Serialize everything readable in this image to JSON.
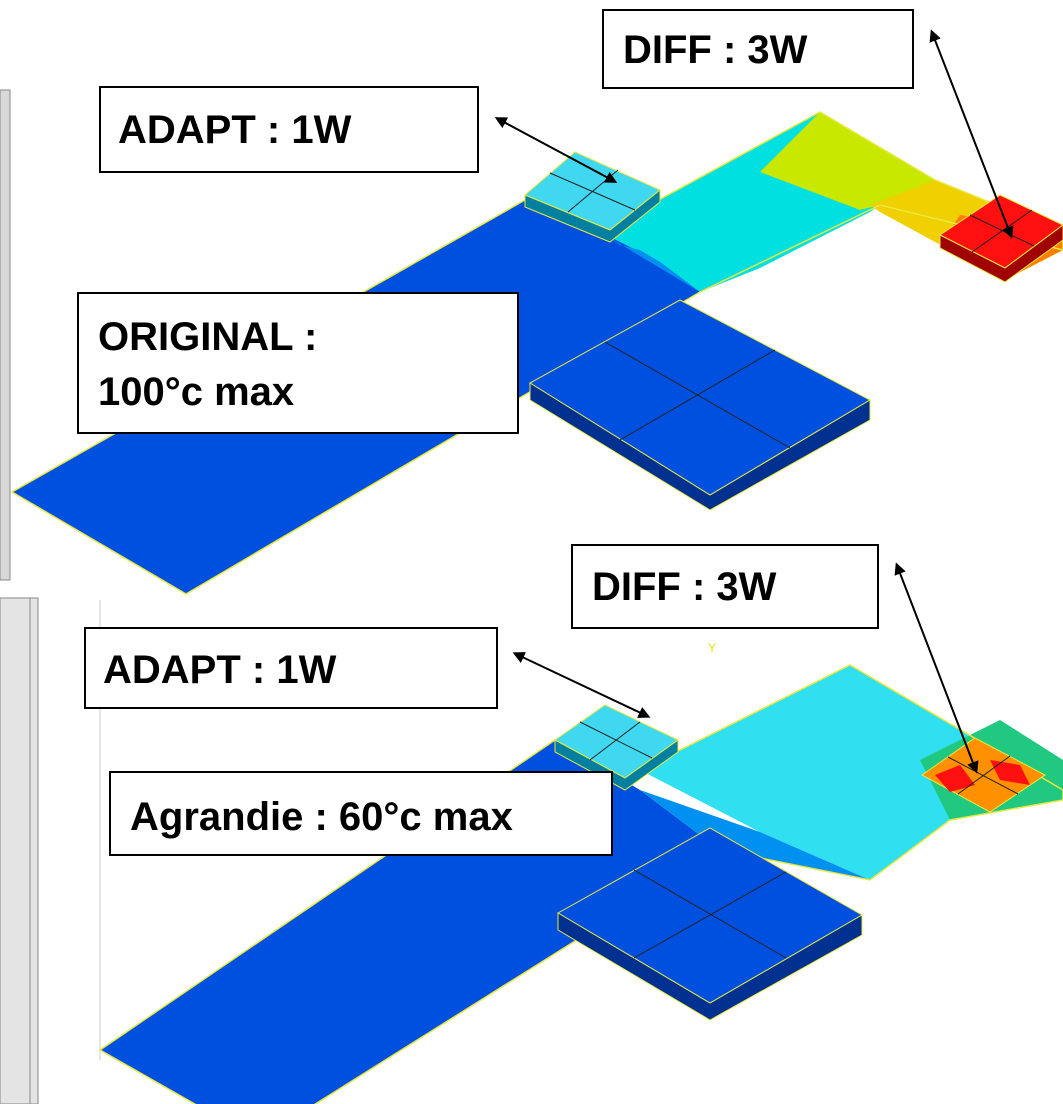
{
  "top_panel": {
    "adapt_label": "ADAPT : 1W",
    "diff_label": "DIFF : 3W",
    "original_label": [
      "ORIGINAL :",
      "100°c max"
    ]
  },
  "bottom_panel": {
    "adapt_label": "ADAPT : 1W",
    "diff_label": "DIFF : 3W",
    "agrandie_label": "Agrandie : 60°c max",
    "axis_label": "Y"
  }
}
